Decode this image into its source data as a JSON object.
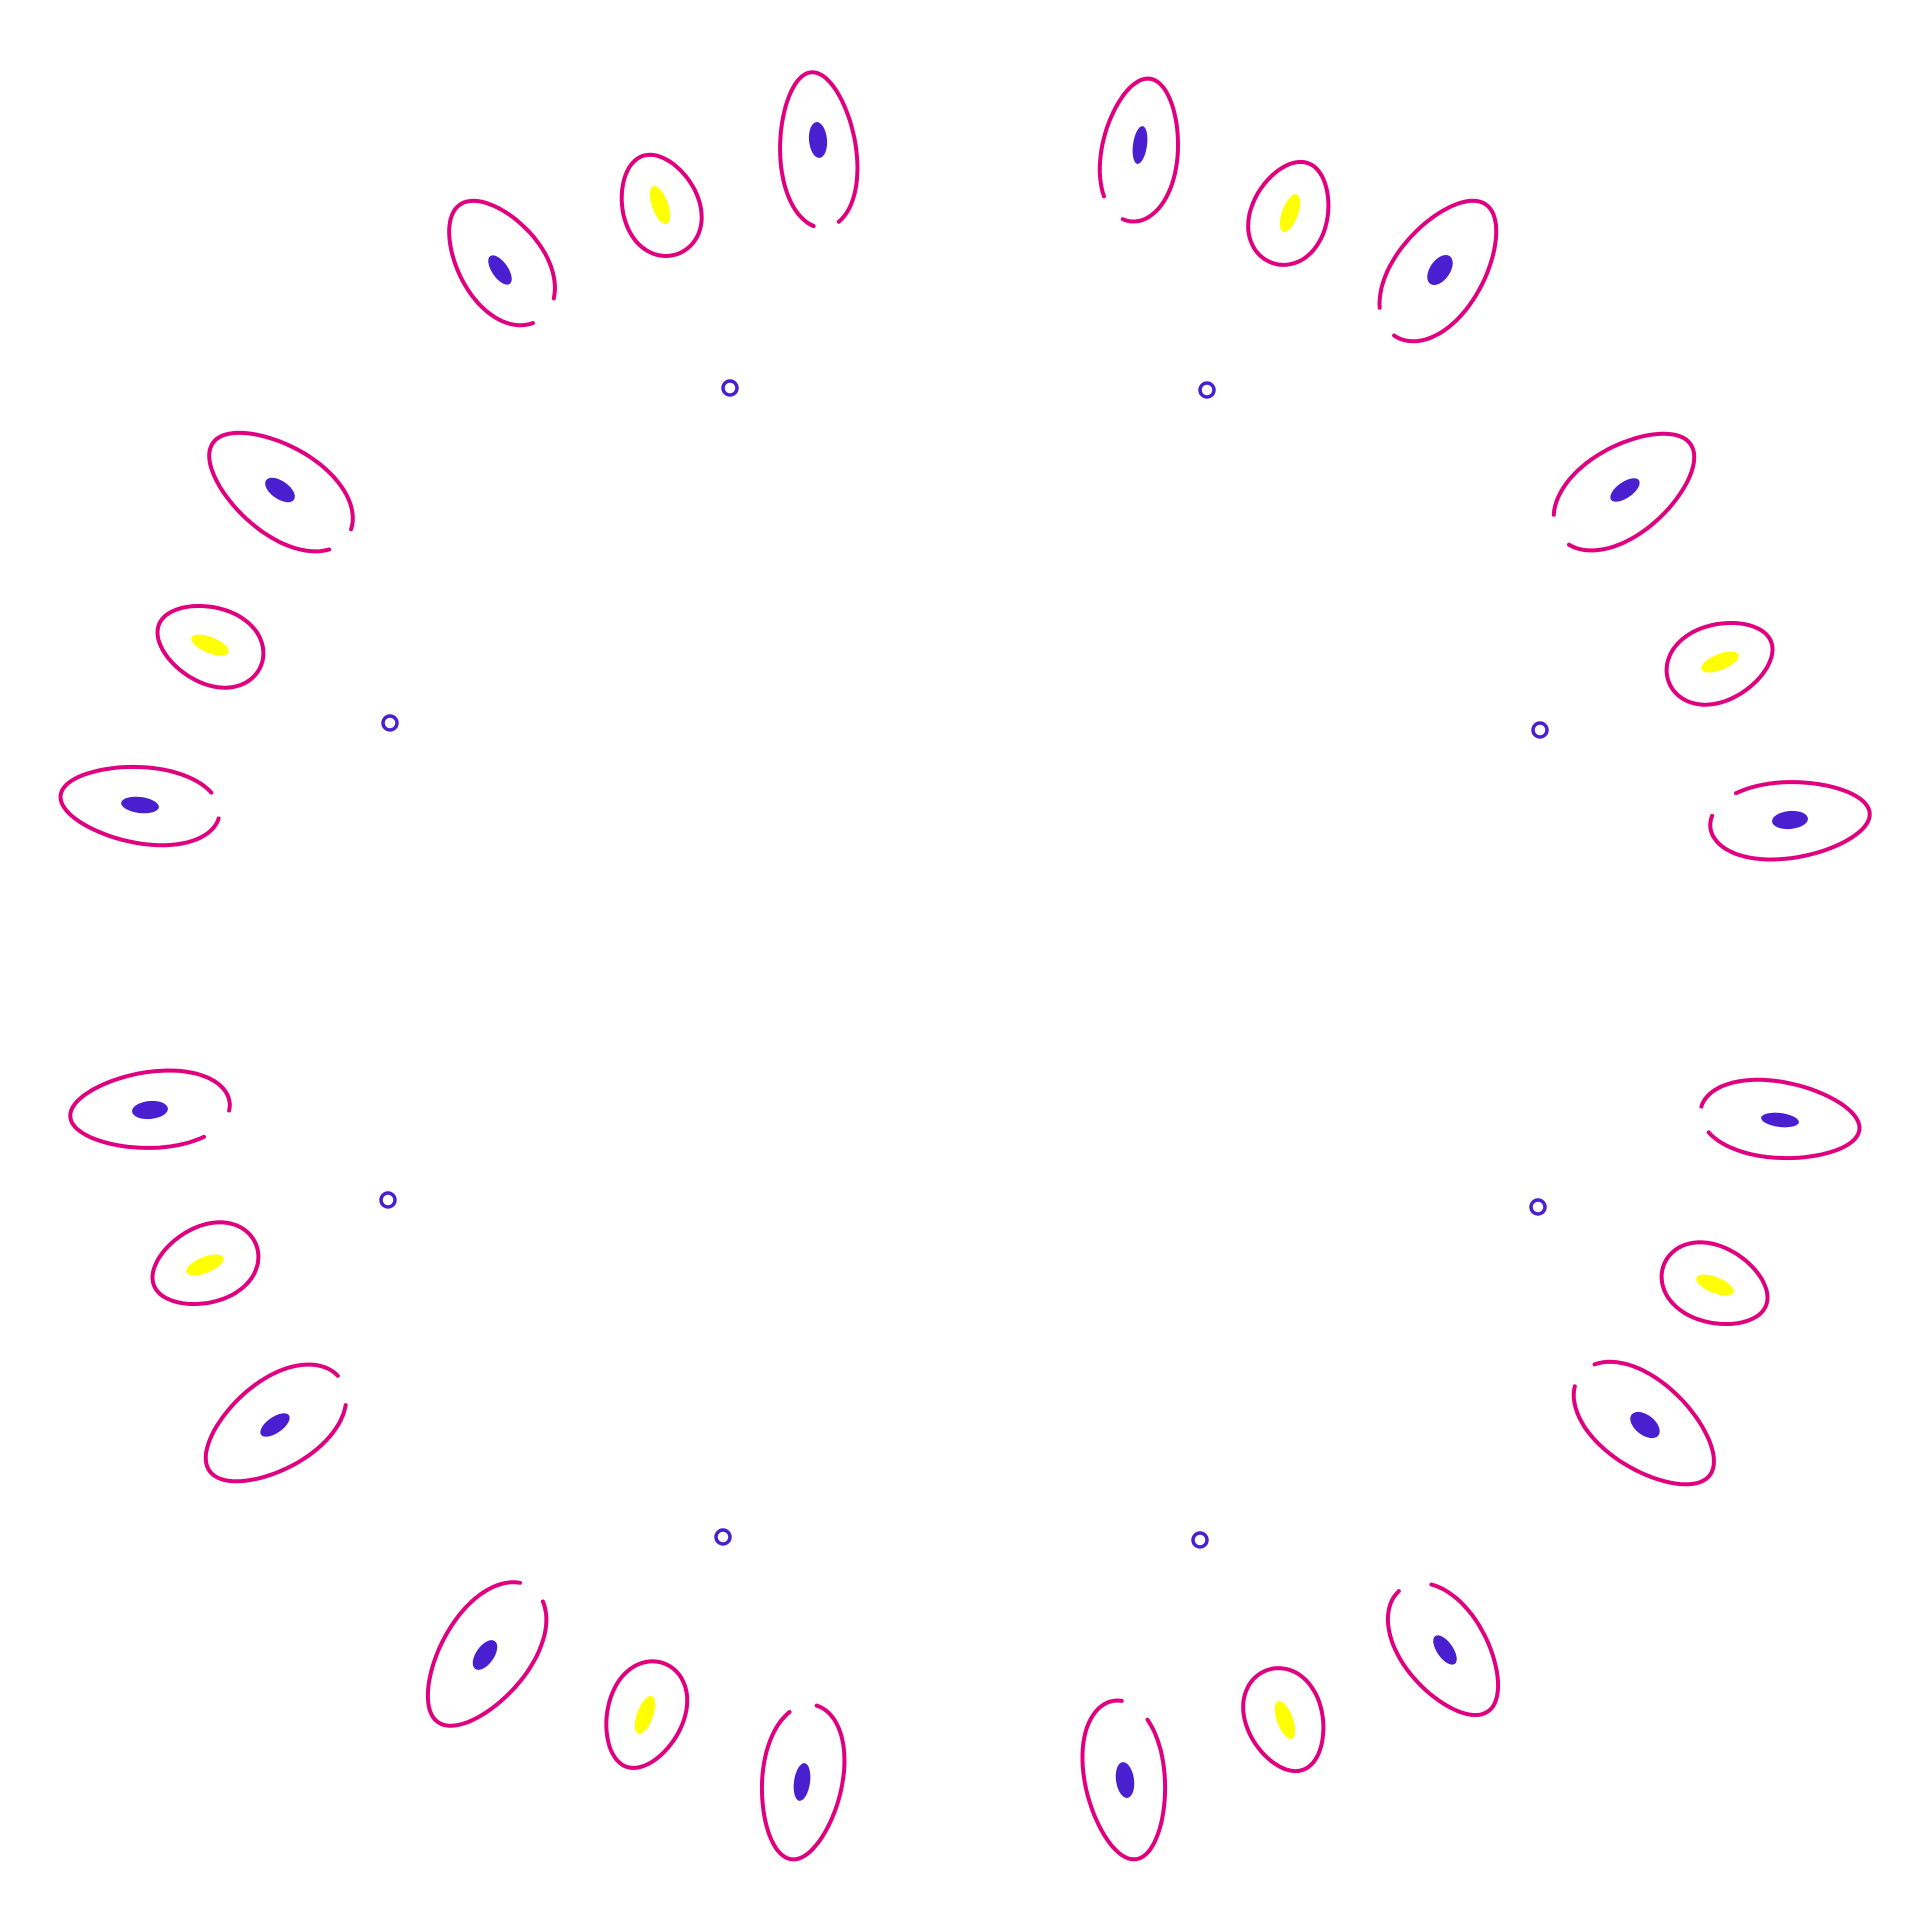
{
  "colors": {
    "background": "#ffffff",
    "petal_outline": "#e0007f",
    "seed_blue": "#4a1fd0",
    "seed_yellow": "#ffff00",
    "dot_ring": "#4a1fd0"
  },
  "motif": {
    "arms": 8,
    "petals_per_arm": 3,
    "petal_seed_pattern": [
      "blue",
      "yellow",
      "blue"
    ],
    "inner_dots": 8
  }
}
